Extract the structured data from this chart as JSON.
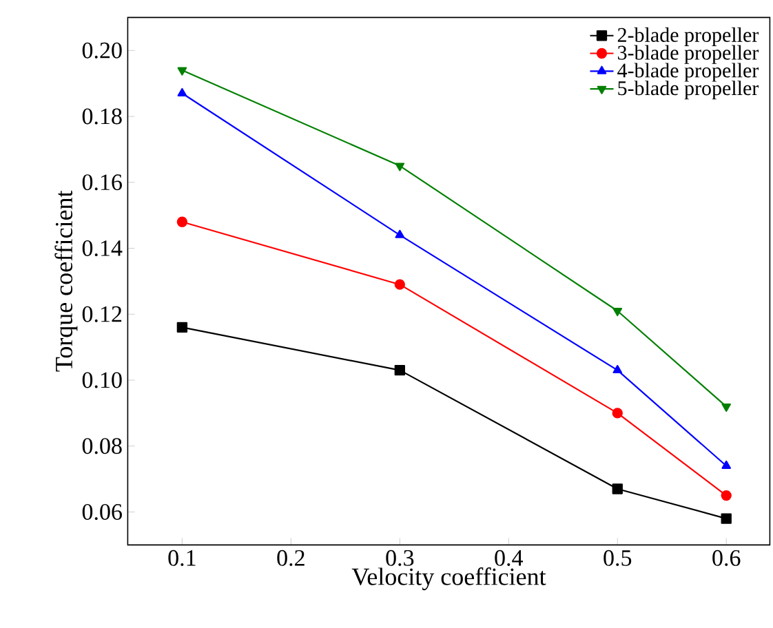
{
  "chart_data": {
    "type": "line",
    "xlabel": "Velocity coefficient",
    "ylabel": "Torque coefficient",
    "x": [
      0.1,
      0.3,
      0.5,
      0.6
    ],
    "series": [
      {
        "name": "2-blade propeller",
        "color": "#000000",
        "marker": "square",
        "values": [
          0.116,
          0.103,
          0.067,
          0.058
        ]
      },
      {
        "name": "3-blade propeller",
        "color": "#ff0000",
        "marker": "circle",
        "values": [
          0.148,
          0.129,
          0.09,
          0.065
        ]
      },
      {
        "name": "4-blade propeller",
        "color": "#0000ff",
        "marker": "triangle",
        "values": [
          0.187,
          0.144,
          0.103,
          0.074
        ]
      },
      {
        "name": "5-blade propeller",
        "color": "#008000",
        "marker": "triangle-down",
        "values": [
          0.194,
          0.165,
          0.121,
          0.092
        ]
      }
    ],
    "xlim": [
      0.05,
      0.64
    ],
    "ylim": [
      0.05,
      0.21
    ],
    "xticks": [
      0.1,
      0.2,
      0.3,
      0.4,
      0.5,
      0.6
    ],
    "yticks": [
      0.06,
      0.08,
      {
        "value": 0.1,
        "label": "0.10"
      },
      0.12,
      0.14,
      0.16,
      0.18,
      {
        "value": 0.2,
        "label": "0.20"
      }
    ],
    "legend": "top right",
    "grid": false,
    "line_style": "solid"
  }
}
